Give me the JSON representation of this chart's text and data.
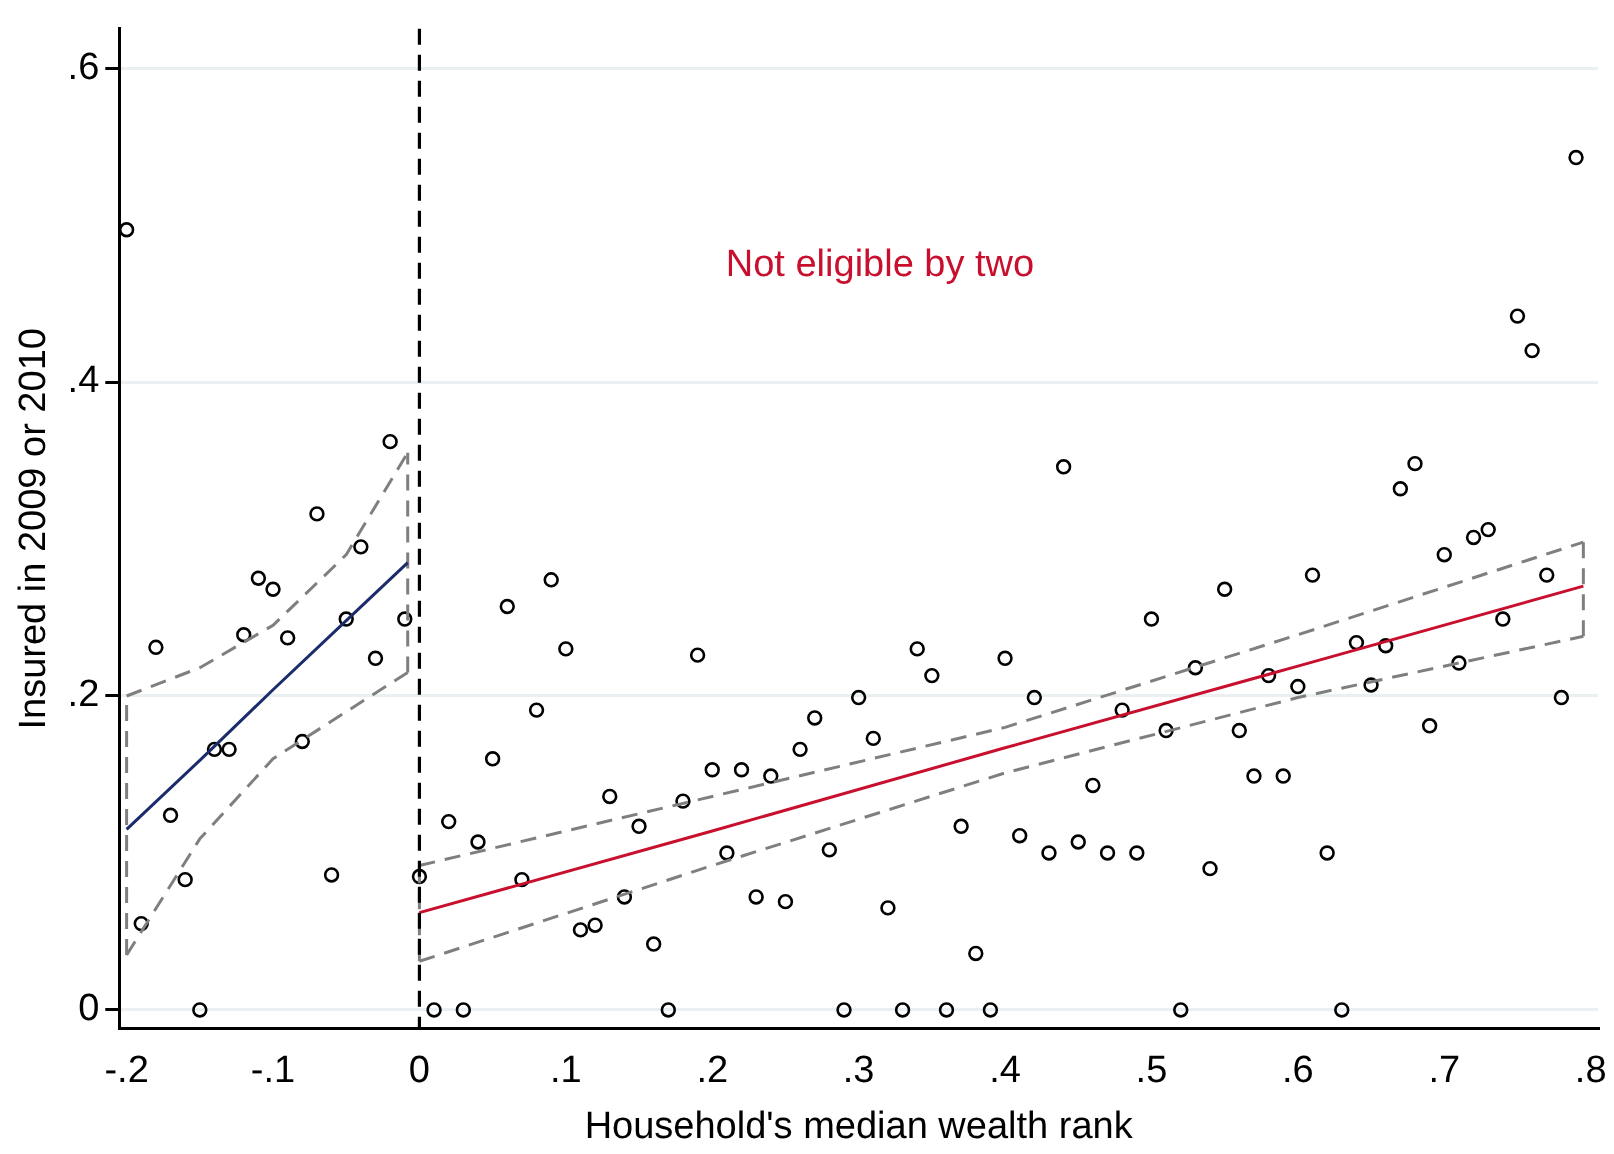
{
  "chart_data": {
    "type": "scatter",
    "xlabel": "Household's median wealth rank",
    "ylabel": "Insured in 2009 or 2010",
    "annotations": [
      "Not eligible by two"
    ],
    "xlim": [
      -0.205,
      0.805
    ],
    "ylim": [
      -0.012,
      0.625
    ],
    "xticks": [
      {
        "value": -0.2,
        "label": "-.2"
      },
      {
        "value": -0.1,
        "label": "-.1"
      },
      0,
      {
        "value": 0.1,
        "label": ".1"
      },
      {
        "value": 0.2,
        "label": ".2"
      },
      {
        "value": 0.3,
        "label": ".3"
      },
      {
        "value": 0.4,
        "label": ".4"
      },
      {
        "value": 0.5,
        "label": ".5"
      },
      {
        "value": 0.6,
        "label": ".6"
      },
      {
        "value": 0.7,
        "label": ".7"
      },
      {
        "value": 0.8,
        "label": ".8"
      }
    ],
    "yticks": [
      0,
      {
        "value": 0.2,
        "label": ".2"
      },
      {
        "value": 0.4,
        "label": ".4"
      },
      {
        "value": 0.6,
        "label": ".6"
      }
    ],
    "grid": "y",
    "legend": false,
    "ref_lines": [
      {
        "axis": "x",
        "value": 0,
        "color": "#000000",
        "line_style": "dashed"
      }
    ],
    "series": [
      {
        "type": "scatter",
        "color": "#000000",
        "marker": "circle",
        "x": [
          -0.2,
          -0.19,
          -0.18,
          -0.17,
          -0.16,
          -0.15,
          -0.14,
          -0.13,
          -0.12,
          -0.11,
          -0.1,
          -0.09,
          -0.08,
          -0.07,
          -0.06,
          -0.05,
          -0.04,
          -0.03,
          -0.02,
          -0.01,
          0.0,
          0.01,
          0.02,
          0.03,
          0.04,
          0.05,
          0.06,
          0.07,
          0.08,
          0.09,
          0.1,
          0.11,
          0.12,
          0.13,
          0.14,
          0.15,
          0.16,
          0.17,
          0.18,
          0.19,
          0.2,
          0.21,
          0.22,
          0.23,
          0.24,
          0.25,
          0.26,
          0.27,
          0.28,
          0.29,
          0.3,
          0.31,
          0.32,
          0.33,
          0.34,
          0.35,
          0.36,
          0.37,
          0.38,
          0.39,
          0.4,
          0.41,
          0.42,
          0.43,
          0.44,
          0.45,
          0.46,
          0.47,
          0.48,
          0.49,
          0.5,
          0.51,
          0.52,
          0.53,
          0.54,
          0.55,
          0.56,
          0.57,
          0.58,
          0.59,
          0.6,
          0.61,
          0.62,
          0.63,
          0.64,
          0.65,
          0.66,
          0.67,
          0.68,
          0.69,
          0.7,
          0.71,
          0.72,
          0.73,
          0.74,
          0.75,
          0.76,
          0.77,
          0.78,
          0.79
        ],
        "values": [
          0.497,
          0.055,
          0.231,
          0.124,
          0.083,
          0.0,
          0.166,
          0.166,
          0.239,
          0.275,
          0.268,
          0.237,
          0.171,
          0.316,
          0.086,
          0.249,
          0.295,
          0.224,
          0.362,
          0.249,
          0.085,
          0.0,
          0.12,
          0.0,
          0.107,
          0.16,
          0.257,
          0.083,
          0.191,
          0.274,
          0.23,
          0.051,
          0.054,
          0.136,
          0.072,
          0.117,
          0.042,
          0.0,
          0.133,
          0.226,
          0.153,
          0.1,
          0.153,
          0.072,
          0.149,
          0.069,
          0.166,
          0.186,
          0.102,
          0.0,
          0.199,
          0.173,
          0.065,
          0.0,
          0.23,
          0.213,
          0.0,
          0.117,
          0.036,
          0.0,
          0.224,
          0.111,
          0.199,
          0.1,
          0.346,
          0.107,
          0.143,
          0.1,
          0.191,
          0.1,
          0.249,
          0.178,
          0.0,
          0.218,
          0.09,
          0.268,
          0.178,
          0.149,
          0.213,
          0.149,
          0.206,
          0.277,
          0.1,
          0.0,
          0.234,
          0.207,
          0.232,
          0.332,
          0.348,
          0.181,
          0.29,
          0.221,
          0.301,
          0.306,
          0.249,
          0.442,
          0.42,
          0.277,
          0.199,
          0.543
        ]
      },
      {
        "type": "line",
        "color": "#1a2c6b",
        "marker": "none",
        "line_style": "solid",
        "x": [
          -0.2,
          -0.15,
          -0.1,
          -0.05,
          -0.008
        ],
        "values": [
          0.115,
          0.159,
          0.204,
          0.248,
          0.285
        ]
      },
      {
        "type": "line",
        "color": "#7f7f7f",
        "marker": "none",
        "line_style": "dashed",
        "x": [
          -0.2,
          -0.15,
          -0.1,
          -0.05,
          -0.008
        ],
        "values": [
          0.2,
          0.218,
          0.245,
          0.29,
          0.355
        ]
      },
      {
        "type": "line",
        "color": "#7f7f7f",
        "marker": "none",
        "line_style": "dashed",
        "x": [
          -0.2,
          -0.15,
          -0.1,
          -0.05,
          -0.008
        ],
        "values": [
          0.035,
          0.109,
          0.16,
          0.19,
          0.215
        ]
      },
      {
        "type": "line",
        "color": "#7f7f7f",
        "marker": "none",
        "line_style": "dashed",
        "x": [
          -0.2,
          -0.2
        ],
        "values": [
          0.035,
          0.2
        ]
      },
      {
        "type": "line",
        "color": "#7f7f7f",
        "marker": "none",
        "line_style": "dashed",
        "x": [
          -0.008,
          -0.008
        ],
        "values": [
          0.215,
          0.355
        ]
      },
      {
        "type": "line",
        "color": "#c8102e",
        "marker": "none",
        "line_style": "solid",
        "x": [
          0,
          0.2,
          0.4,
          0.6,
          0.795
        ],
        "values": [
          0.062,
          0.114,
          0.167,
          0.219,
          0.27
        ]
      },
      {
        "type": "line",
        "color": "#7f7f7f",
        "marker": "none",
        "line_style": "dashed",
        "x": [
          0,
          0.2,
          0.4,
          0.6,
          0.795
        ],
        "values": [
          0.092,
          0.136,
          0.18,
          0.239,
          0.298
        ]
      },
      {
        "type": "line",
        "color": "#7f7f7f",
        "marker": "none",
        "line_style": "dashed",
        "x": [
          0,
          0.2,
          0.4,
          0.6,
          0.795
        ],
        "values": [
          0.031,
          0.092,
          0.151,
          0.199,
          0.238
        ]
      },
      {
        "type": "line",
        "color": "#7f7f7f",
        "marker": "none",
        "line_style": "dashed",
        "x": [
          0,
          0
        ],
        "values": [
          0.031,
          0.092
        ]
      },
      {
        "type": "line",
        "color": "#7f7f7f",
        "marker": "none",
        "line_style": "dashed",
        "x": [
          0.795,
          0.795
        ],
        "values": [
          0.238,
          0.298
        ]
      }
    ]
  }
}
